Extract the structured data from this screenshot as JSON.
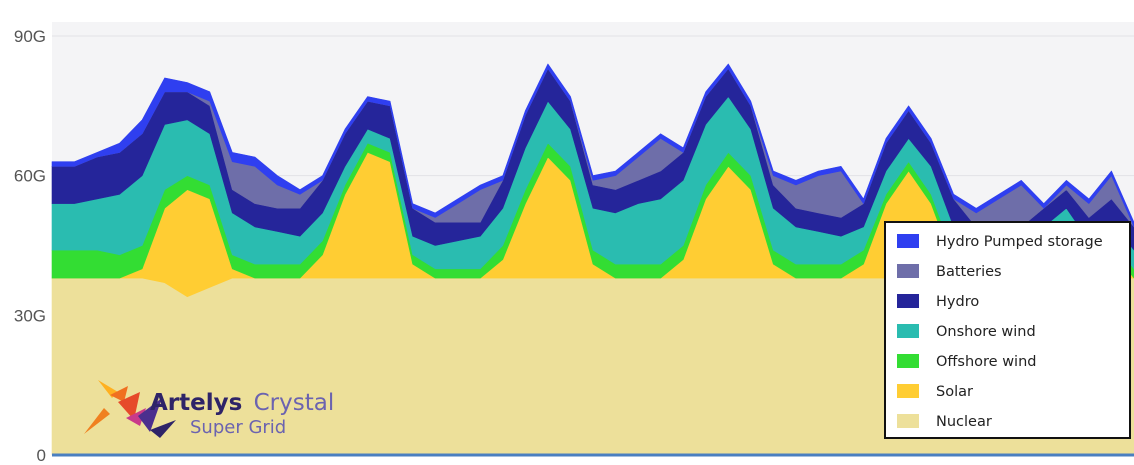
{
  "chart_data": {
    "type": "area",
    "stacked": true,
    "y_ticks": [
      {
        "value": 0,
        "label": "0"
      },
      {
        "value": 30,
        "label": "30G"
      },
      {
        "value": 60,
        "label": "60G"
      },
      {
        "value": 90,
        "label": "90G"
      }
    ],
    "ylim": [
      0,
      93
    ],
    "x_points": 49,
    "legend_position": "bottom-right",
    "series": [
      {
        "name": "Nuclear",
        "color": "#ede09a",
        "values": [
          38,
          38,
          38,
          38,
          38,
          37,
          34,
          36,
          38,
          38,
          38,
          38,
          38,
          38,
          38,
          38,
          38,
          38,
          38,
          38,
          38,
          38,
          38,
          38,
          38,
          38,
          38,
          38,
          38,
          38,
          38,
          38,
          38,
          38,
          38,
          38,
          38,
          38,
          38,
          38,
          38,
          38,
          38,
          38,
          38,
          38,
          38,
          38,
          38
        ]
      },
      {
        "name": "Solar",
        "color": "#ffcd33",
        "values": [
          0,
          0,
          0,
          0,
          2,
          16,
          23,
          19,
          2,
          0,
          0,
          0,
          5,
          18,
          27,
          25,
          3,
          0,
          0,
          0,
          4,
          16,
          26,
          21,
          3,
          0,
          0,
          0,
          4,
          17,
          24,
          19,
          3,
          0,
          0,
          0,
          3,
          16,
          23,
          16,
          3,
          0,
          0,
          0,
          4,
          9,
          2,
          6,
          0
        ]
      },
      {
        "name": "Offshore wind",
        "color": "#33dd33",
        "values": [
          6,
          6,
          6,
          5,
          5,
          4,
          3,
          3,
          3,
          3,
          3,
          3,
          3,
          2,
          2,
          2,
          2,
          2,
          2,
          2,
          3,
          3,
          3,
          3,
          3,
          3,
          3,
          3,
          3,
          3,
          3,
          3,
          3,
          3,
          3,
          3,
          3,
          2,
          2,
          2,
          2,
          2,
          2,
          2,
          2,
          2,
          2,
          2,
          2
        ]
      },
      {
        "name": "Onshore wind",
        "color": "#2abcb0",
        "values": [
          10,
          10,
          11,
          13,
          15,
          14,
          12,
          11,
          9,
          8,
          7,
          6,
          6,
          4,
          3,
          3,
          4,
          5,
          6,
          7,
          8,
          9,
          9,
          8,
          9,
          11,
          13,
          14,
          14,
          13,
          12,
          10,
          9,
          8,
          7,
          6,
          5,
          5,
          5,
          6,
          6,
          5,
          5,
          5,
          5,
          4,
          4,
          4,
          4
        ]
      },
      {
        "name": "Hydro",
        "color": "#25259a",
        "values": [
          8,
          8,
          9,
          9,
          9,
          7,
          6,
          6,
          5,
          5,
          5,
          6,
          7,
          7,
          6,
          7,
          6,
          5,
          4,
          3,
          6,
          7,
          7,
          6,
          5,
          5,
          5,
          6,
          6,
          6,
          6,
          5,
          5,
          4,
          4,
          4,
          5,
          6,
          6,
          5,
          6,
          4,
          4,
          4,
          4,
          4,
          5,
          5,
          5
        ]
      },
      {
        "name": "Batteries",
        "color": "#6e6ea9",
        "values": [
          0,
          0,
          0,
          0,
          0,
          0,
          0,
          1,
          6,
          8,
          5,
          3,
          0,
          0,
          0,
          0,
          0,
          1,
          4,
          7,
          0,
          0,
          0,
          0,
          1,
          3,
          5,
          7,
          0,
          0,
          0,
          0,
          2,
          5,
          8,
          10,
          0,
          0,
          0,
          0,
          0,
          3,
          6,
          9,
          0,
          1,
          3,
          5,
          0
        ]
      },
      {
        "name": "Hydro Pumped storage",
        "color": "#2f3ff0",
        "values": [
          1,
          1,
          1,
          2,
          3,
          3,
          2,
          2,
          2,
          2,
          2,
          1,
          1,
          1,
          1,
          1,
          1,
          1,
          1,
          1,
          1,
          1,
          1,
          1,
          1,
          1,
          1,
          1,
          1,
          1,
          1,
          1,
          1,
          1,
          1,
          1,
          1,
          1,
          1,
          1,
          1,
          1,
          1,
          1,
          1,
          1,
          1,
          1,
          1
        ]
      }
    ],
    "legend_order": [
      "Hydro Pumped storage",
      "Batteries",
      "Hydro",
      "Onshore wind",
      "Offshore wind",
      "Solar",
      "Nuclear"
    ],
    "legend_colors": {
      "Hydro Pumped storage": "#2f3ff0",
      "Batteries": "#6e6ea9",
      "Hydro": "#25259a",
      "Onshore wind": "#2abcb0",
      "Offshore wind": "#33dd33",
      "Solar": "#ffcd33",
      "Nuclear": "#ede09a"
    },
    "gridlines": true
  },
  "branding": {
    "name_a": "Artelys",
    "name_b": "Crystal",
    "tagline": "Super Grid",
    "color_dark": "#2e2468",
    "color_light": "#6b63b0"
  }
}
